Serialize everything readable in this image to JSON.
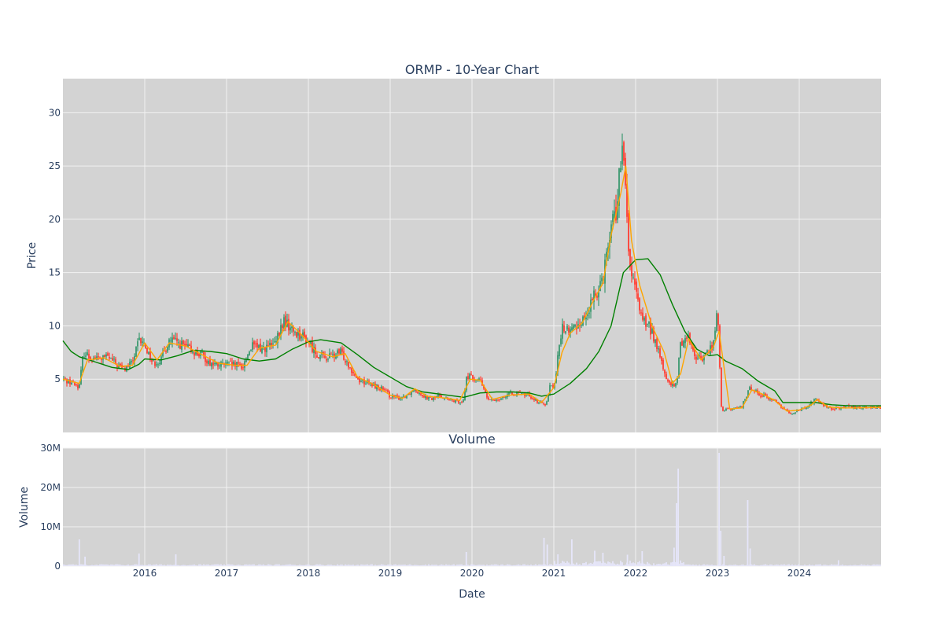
{
  "chart_data": [
    {
      "type": "candlestick",
      "title": "ORMP - 10-Year Chart",
      "ylabel": "Price",
      "xlabel": "",
      "ylim": [
        0,
        33.2
      ],
      "yticks": [
        5,
        10,
        15,
        20,
        25,
        30
      ],
      "xticks": [
        "2016",
        "2017",
        "2018",
        "2019",
        "2020",
        "2021",
        "2022",
        "2023",
        "2024"
      ],
      "x_range": [
        2015.0,
        2025.0
      ],
      "grid": true,
      "colors": {
        "increasing": "#3d9970",
        "decreasing": "#ff4136",
        "ma_short": "#ffa500",
        "ma_long": "#008000",
        "plot_bg": "#d3d3d3",
        "grid": "#f2f2f2"
      },
      "close_series": [
        [
          2015.0,
          5.0
        ],
        [
          2015.1,
          4.7
        ],
        [
          2015.2,
          4.3
        ],
        [
          2015.25,
          7.5
        ],
        [
          2015.35,
          7.0
        ],
        [
          2015.45,
          6.9
        ],
        [
          2015.55,
          7.1
        ],
        [
          2015.65,
          6.4
        ],
        [
          2015.75,
          5.9
        ],
        [
          2015.85,
          6.6
        ],
        [
          2015.93,
          8.6
        ],
        [
          2016.0,
          8.2
        ],
        [
          2016.1,
          6.5
        ],
        [
          2016.2,
          6.8
        ],
        [
          2016.3,
          8.7
        ],
        [
          2016.4,
          8.4
        ],
        [
          2016.5,
          8.0
        ],
        [
          2016.6,
          7.6
        ],
        [
          2016.7,
          7.2
        ],
        [
          2016.8,
          6.5
        ],
        [
          2016.9,
          6.3
        ],
        [
          2017.0,
          6.4
        ],
        [
          2017.1,
          6.3
        ],
        [
          2017.2,
          6.2
        ],
        [
          2017.3,
          8.1
        ],
        [
          2017.4,
          7.9
        ],
        [
          2017.5,
          8.0
        ],
        [
          2017.6,
          8.3
        ],
        [
          2017.7,
          10.5
        ],
        [
          2017.8,
          9.6
        ],
        [
          2017.9,
          9.2
        ],
        [
          2018.0,
          8.5
        ],
        [
          2018.1,
          7.4
        ],
        [
          2018.2,
          7.0
        ],
        [
          2018.3,
          7.2
        ],
        [
          2018.4,
          7.5
        ],
        [
          2018.5,
          6.3
        ],
        [
          2018.6,
          5.0
        ],
        [
          2018.7,
          4.7
        ],
        [
          2018.8,
          4.4
        ],
        [
          2018.9,
          4.1
        ],
        [
          2019.0,
          3.4
        ],
        [
          2019.1,
          3.2
        ],
        [
          2019.2,
          3.5
        ],
        [
          2019.3,
          4.1
        ],
        [
          2019.4,
          3.5
        ],
        [
          2019.5,
          3.1
        ],
        [
          2019.6,
          3.5
        ],
        [
          2019.7,
          3.1
        ],
        [
          2019.8,
          2.9
        ],
        [
          2019.9,
          3.0
        ],
        [
          2019.93,
          5.3
        ],
        [
          2020.0,
          5.1
        ],
        [
          2020.1,
          4.9
        ],
        [
          2020.2,
          3.0
        ],
        [
          2020.3,
          3.1
        ],
        [
          2020.4,
          3.4
        ],
        [
          2020.5,
          3.7
        ],
        [
          2020.6,
          3.6
        ],
        [
          2020.7,
          3.5
        ],
        [
          2020.8,
          2.9
        ],
        [
          2020.9,
          2.6
        ],
        [
          2020.95,
          4.4
        ],
        [
          2021.0,
          4.2
        ],
        [
          2021.1,
          9.8
        ],
        [
          2021.2,
          9.5
        ],
        [
          2021.3,
          10.2
        ],
        [
          2021.4,
          11.0
        ],
        [
          2021.5,
          12.8
        ],
        [
          2021.6,
          14.8
        ],
        [
          2021.7,
          19.5
        ],
        [
          2021.78,
          21.5
        ],
        [
          2021.83,
          27.0
        ],
        [
          2021.88,
          22.0
        ],
        [
          2021.93,
          15.5
        ],
        [
          2022.0,
          13.0
        ],
        [
          2022.1,
          10.5
        ],
        [
          2022.2,
          9.5
        ],
        [
          2022.3,
          7.0
        ],
        [
          2022.4,
          4.5
        ],
        [
          2022.5,
          4.4
        ],
        [
          2022.55,
          8.5
        ],
        [
          2022.65,
          9.0
        ],
        [
          2022.75,
          6.8
        ],
        [
          2022.85,
          7.2
        ],
        [
          2022.95,
          8.4
        ],
        [
          2023.0,
          11.5
        ],
        [
          2023.05,
          2.1
        ],
        [
          2023.2,
          2.2
        ],
        [
          2023.3,
          2.5
        ],
        [
          2023.4,
          4.2
        ],
        [
          2023.5,
          3.7
        ],
        [
          2023.6,
          3.3
        ],
        [
          2023.7,
          3.0
        ],
        [
          2023.8,
          2.3
        ],
        [
          2023.9,
          1.8
        ],
        [
          2024.0,
          2.1
        ],
        [
          2024.1,
          2.4
        ],
        [
          2024.2,
          3.2
        ],
        [
          2024.3,
          2.5
        ],
        [
          2024.4,
          2.2
        ],
        [
          2024.5,
          2.3
        ],
        [
          2024.6,
          2.4
        ],
        [
          2024.7,
          2.3
        ],
        [
          2024.8,
          2.4
        ],
        [
          2024.9,
          2.4
        ],
        [
          2025.0,
          2.3
        ]
      ],
      "ma_short_series": [
        [
          2015.0,
          5.0
        ],
        [
          2015.2,
          4.6
        ],
        [
          2015.3,
          6.8
        ],
        [
          2015.5,
          7.0
        ],
        [
          2015.7,
          6.2
        ],
        [
          2015.85,
          6.3
        ],
        [
          2016.0,
          8.4
        ],
        [
          2016.15,
          6.8
        ],
        [
          2016.3,
          8.4
        ],
        [
          2016.5,
          8.1
        ],
        [
          2016.7,
          7.3
        ],
        [
          2016.9,
          6.5
        ],
        [
          2017.1,
          6.3
        ],
        [
          2017.25,
          6.3
        ],
        [
          2017.4,
          7.9
        ],
        [
          2017.6,
          8.2
        ],
        [
          2017.75,
          10.4
        ],
        [
          2017.9,
          9.3
        ],
        [
          2018.1,
          7.6
        ],
        [
          2018.3,
          7.1
        ],
        [
          2018.45,
          7.4
        ],
        [
          2018.6,
          5.2
        ],
        [
          2018.8,
          4.5
        ],
        [
          2019.0,
          3.5
        ],
        [
          2019.15,
          3.2
        ],
        [
          2019.3,
          4.1
        ],
        [
          2019.45,
          3.4
        ],
        [
          2019.7,
          3.2
        ],
        [
          2019.85,
          3.0
        ],
        [
          2019.98,
          5.0
        ],
        [
          2020.1,
          4.9
        ],
        [
          2020.25,
          3.1
        ],
        [
          2020.45,
          3.5
        ],
        [
          2020.7,
          3.6
        ],
        [
          2020.85,
          2.8
        ],
        [
          2021.0,
          4.2
        ],
        [
          2021.1,
          7.5
        ],
        [
          2021.2,
          9.3
        ],
        [
          2021.35,
          10.3
        ],
        [
          2021.5,
          12.6
        ],
        [
          2021.6,
          14.0
        ],
        [
          2021.7,
          18.5
        ],
        [
          2021.82,
          22.5
        ],
        [
          2021.88,
          25.0
        ],
        [
          2021.95,
          18.0
        ],
        [
          2022.05,
          13.8
        ],
        [
          2022.2,
          10.0
        ],
        [
          2022.35,
          7.5
        ],
        [
          2022.45,
          4.6
        ],
        [
          2022.55,
          5.5
        ],
        [
          2022.65,
          8.8
        ],
        [
          2022.8,
          6.8
        ],
        [
          2022.95,
          8.0
        ],
        [
          2023.02,
          9.5
        ],
        [
          2023.15,
          2.2
        ],
        [
          2023.3,
          2.3
        ],
        [
          2023.42,
          4.0
        ],
        [
          2023.55,
          3.6
        ],
        [
          2023.7,
          3.0
        ],
        [
          2023.85,
          2.0
        ],
        [
          2024.0,
          2.1
        ],
        [
          2024.15,
          2.6
        ],
        [
          2024.22,
          3.1
        ],
        [
          2024.35,
          2.4
        ],
        [
          2024.5,
          2.3
        ],
        [
          2024.7,
          2.3
        ],
        [
          2025.0,
          2.35
        ]
      ],
      "ma_long_series": [
        [
          2015.0,
          8.6
        ],
        [
          2015.1,
          7.6
        ],
        [
          2015.2,
          7.1
        ],
        [
          2015.4,
          6.6
        ],
        [
          2015.6,
          6.1
        ],
        [
          2015.8,
          5.9
        ],
        [
          2015.93,
          6.4
        ],
        [
          2016.0,
          6.9
        ],
        [
          2016.2,
          6.8
        ],
        [
          2016.4,
          7.2
        ],
        [
          2016.6,
          7.7
        ],
        [
          2016.8,
          7.6
        ],
        [
          2017.0,
          7.4
        ],
        [
          2017.2,
          6.9
        ],
        [
          2017.4,
          6.7
        ],
        [
          2017.6,
          6.9
        ],
        [
          2017.8,
          7.8
        ],
        [
          2018.0,
          8.5
        ],
        [
          2018.15,
          8.7
        ],
        [
          2018.4,
          8.4
        ],
        [
          2018.6,
          7.3
        ],
        [
          2018.8,
          6.1
        ],
        [
          2019.0,
          5.2
        ],
        [
          2019.2,
          4.3
        ],
        [
          2019.4,
          3.8
        ],
        [
          2019.6,
          3.6
        ],
        [
          2019.9,
          3.3
        ],
        [
          2020.1,
          3.7
        ],
        [
          2020.3,
          3.8
        ],
        [
          2020.5,
          3.8
        ],
        [
          2020.7,
          3.7
        ],
        [
          2020.85,
          3.4
        ],
        [
          2021.0,
          3.6
        ],
        [
          2021.2,
          4.6
        ],
        [
          2021.4,
          6.0
        ],
        [
          2021.55,
          7.6
        ],
        [
          2021.7,
          10.0
        ],
        [
          2021.85,
          15.0
        ],
        [
          2022.0,
          16.2
        ],
        [
          2022.15,
          16.3
        ],
        [
          2022.3,
          14.8
        ],
        [
          2022.45,
          12.0
        ],
        [
          2022.6,
          9.5
        ],
        [
          2022.75,
          7.8
        ],
        [
          2022.9,
          7.2
        ],
        [
          2023.0,
          7.3
        ],
        [
          2023.1,
          6.7
        ],
        [
          2023.3,
          6.0
        ],
        [
          2023.5,
          4.8
        ],
        [
          2023.7,
          3.9
        ],
        [
          2023.8,
          2.8
        ],
        [
          2024.0,
          2.8
        ],
        [
          2024.2,
          2.8
        ],
        [
          2024.4,
          2.6
        ],
        [
          2024.6,
          2.5
        ],
        [
          2024.8,
          2.5
        ],
        [
          2025.0,
          2.5
        ]
      ]
    },
    {
      "type": "bar",
      "title": "Volume",
      "xlabel": "Date",
      "ylabel": "Volume",
      "ylim": [
        0,
        30
      ],
      "yticks": [
        0,
        10,
        20,
        30
      ],
      "ytick_labels": [
        "0",
        "10M",
        "20M",
        "30M"
      ],
      "xticks": [
        "2016",
        "2017",
        "2018",
        "2019",
        "2020",
        "2021",
        "2022",
        "2023",
        "2024"
      ],
      "x_range": [
        2015.0,
        2025.0
      ],
      "unit": "M",
      "colors": {
        "bar": "#e6e6fa"
      },
      "spikes": [
        [
          2015.2,
          6.8
        ],
        [
          2015.27,
          2.4
        ],
        [
          2015.93,
          3.2
        ],
        [
          2016.38,
          3.0
        ],
        [
          2019.93,
          3.6
        ],
        [
          2020.88,
          7.2
        ],
        [
          2020.92,
          5.5
        ],
        [
          2021.05,
          3.0
        ],
        [
          2021.22,
          6.8
        ],
        [
          2021.5,
          3.9
        ],
        [
          2021.6,
          3.4
        ],
        [
          2021.9,
          2.9
        ],
        [
          2022.08,
          3.8
        ],
        [
          2022.47,
          4.7
        ],
        [
          2022.52,
          24.8
        ],
        [
          2022.5,
          16.0
        ],
        [
          2023.02,
          28.8
        ],
        [
          2023.04,
          9.0
        ],
        [
          2023.08,
          2.6
        ],
        [
          2023.37,
          16.8
        ],
        [
          2023.4,
          4.5
        ],
        [
          2024.48,
          1.5
        ]
      ]
    }
  ]
}
